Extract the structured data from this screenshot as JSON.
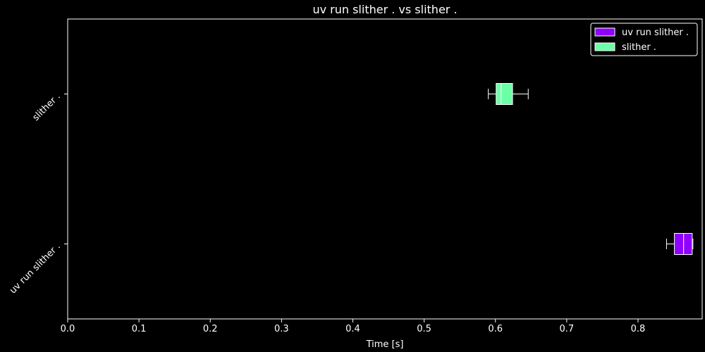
{
  "chart_data": {
    "type": "boxplot",
    "orientation": "horizontal",
    "title": "uv run slither . vs slither .",
    "xlabel": "Time [s]",
    "ylabel": "",
    "xlim": [
      0.0,
      0.89
    ],
    "xticks": [
      0.0,
      0.1,
      0.2,
      0.3,
      0.4,
      0.5,
      0.6,
      0.7,
      0.8
    ],
    "xtick_labels": [
      "0.0",
      "0.1",
      "0.2",
      "0.3",
      "0.4",
      "0.5",
      "0.6",
      "0.7",
      "0.8"
    ],
    "grid": false,
    "legend_position": "top-right",
    "background": "#000000",
    "series": [
      {
        "name": "uv run slither .",
        "color": "#8f00ff",
        "whisker_low": 0.84,
        "q1": 0.851,
        "median": 0.864,
        "q3": 0.876,
        "whisker_high": 0.877
      },
      {
        "name": "slither .",
        "color": "#6dffa8",
        "whisker_low": 0.59,
        "q1": 0.601,
        "median": 0.608,
        "q3": 0.624,
        "whisker_high": 0.646
      }
    ]
  }
}
